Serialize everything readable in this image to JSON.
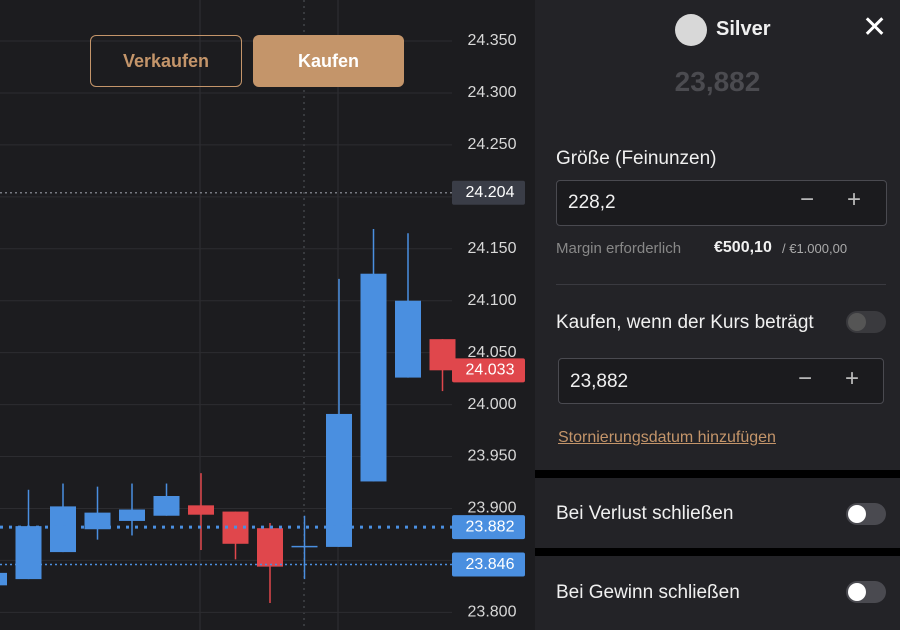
{
  "chart": {
    "type": "candlestick",
    "buttons": {
      "sell": "Verkaufen",
      "buy": "Kaufen"
    },
    "ylim": [
      23.783,
      24.3895
    ],
    "yticks": [
      {
        "value": 24.35,
        "label": "24.350"
      },
      {
        "value": 24.3,
        "label": "24.300"
      },
      {
        "value": 24.25,
        "label": "24.250"
      },
      {
        "value": 24.2,
        "label": "24.200"
      },
      {
        "value": 24.15,
        "label": "24.150"
      },
      {
        "value": 24.1,
        "label": "24.100"
      },
      {
        "value": 24.05,
        "label": "24.050"
      },
      {
        "value": 24.0,
        "label": "24.000"
      },
      {
        "value": 23.95,
        "label": "23.950"
      },
      {
        "value": 23.9,
        "label": "23.900"
      },
      {
        "value": 23.85,
        "label": "23.850"
      },
      {
        "value": 23.8,
        "label": "23.800"
      }
    ],
    "up_color": "#4a8fe0",
    "down_color": "#e0474c",
    "candles": [
      {
        "open": 23.826,
        "high": 23.838,
        "low": 23.826,
        "close": 23.838
      },
      {
        "open": 23.832,
        "high": 23.918,
        "low": 23.832,
        "close": 23.883
      },
      {
        "open": 23.858,
        "high": 23.924,
        "low": 23.858,
        "close": 23.902
      },
      {
        "open": 23.88,
        "high": 23.921,
        "low": 23.87,
        "close": 23.896
      },
      {
        "open": 23.888,
        "high": 23.924,
        "low": 23.874,
        "close": 23.899
      },
      {
        "open": 23.893,
        "high": 23.924,
        "low": 23.893,
        "close": 23.912
      },
      {
        "open": 23.903,
        "high": 23.934,
        "low": 23.86,
        "close": 23.894
      },
      {
        "open": 23.897,
        "high": 23.897,
        "low": 23.851,
        "close": 23.866
      },
      {
        "open": 23.881,
        "high": 23.886,
        "low": 23.809,
        "close": 23.844
      },
      {
        "open": 23.864,
        "high": 23.893,
        "low": 23.832,
        "close": 23.864
      },
      {
        "open": 23.863,
        "high": 24.121,
        "low": 23.863,
        "close": 23.991
      },
      {
        "open": 23.926,
        "high": 24.169,
        "low": 23.926,
        "close": 24.126
      },
      {
        "open": 24.026,
        "high": 24.165,
        "low": 24.026,
        "close": 24.1
      },
      {
        "open": 24.063,
        "high": 24.063,
        "low": 24.013,
        "close": 24.033
      }
    ],
    "price_tags": [
      {
        "value": 24.204,
        "color": "#3a3d47",
        "line": "#777a82"
      },
      {
        "value": 24.033,
        "color": "#e0474c",
        "line": null
      },
      {
        "value": 23.882,
        "color": "#4a8fe0",
        "line": "#4a8fe0"
      },
      {
        "value": 23.846,
        "color": "#4a8fe0",
        "line": "#4a8fe0"
      }
    ]
  },
  "panel": {
    "instrument": "Silver",
    "price": "23,882",
    "size_label": "Größe (Feinunzen)",
    "size_value": "228,2",
    "margin_label": "Margin erforderlich",
    "margin_value": "€500,10",
    "margin_total": "/ €1.000,00",
    "limit_label": "Kaufen, wenn der Kurs beträgt",
    "limit_on": false,
    "limit_value": "23,882",
    "cancel_link": "Stornierungsdatum hinzufügen",
    "stop_loss": {
      "label": "Bei Verlust schließen",
      "on": false
    },
    "take_profit": {
      "label": "Bei Gewinn schließen",
      "on": false
    }
  }
}
